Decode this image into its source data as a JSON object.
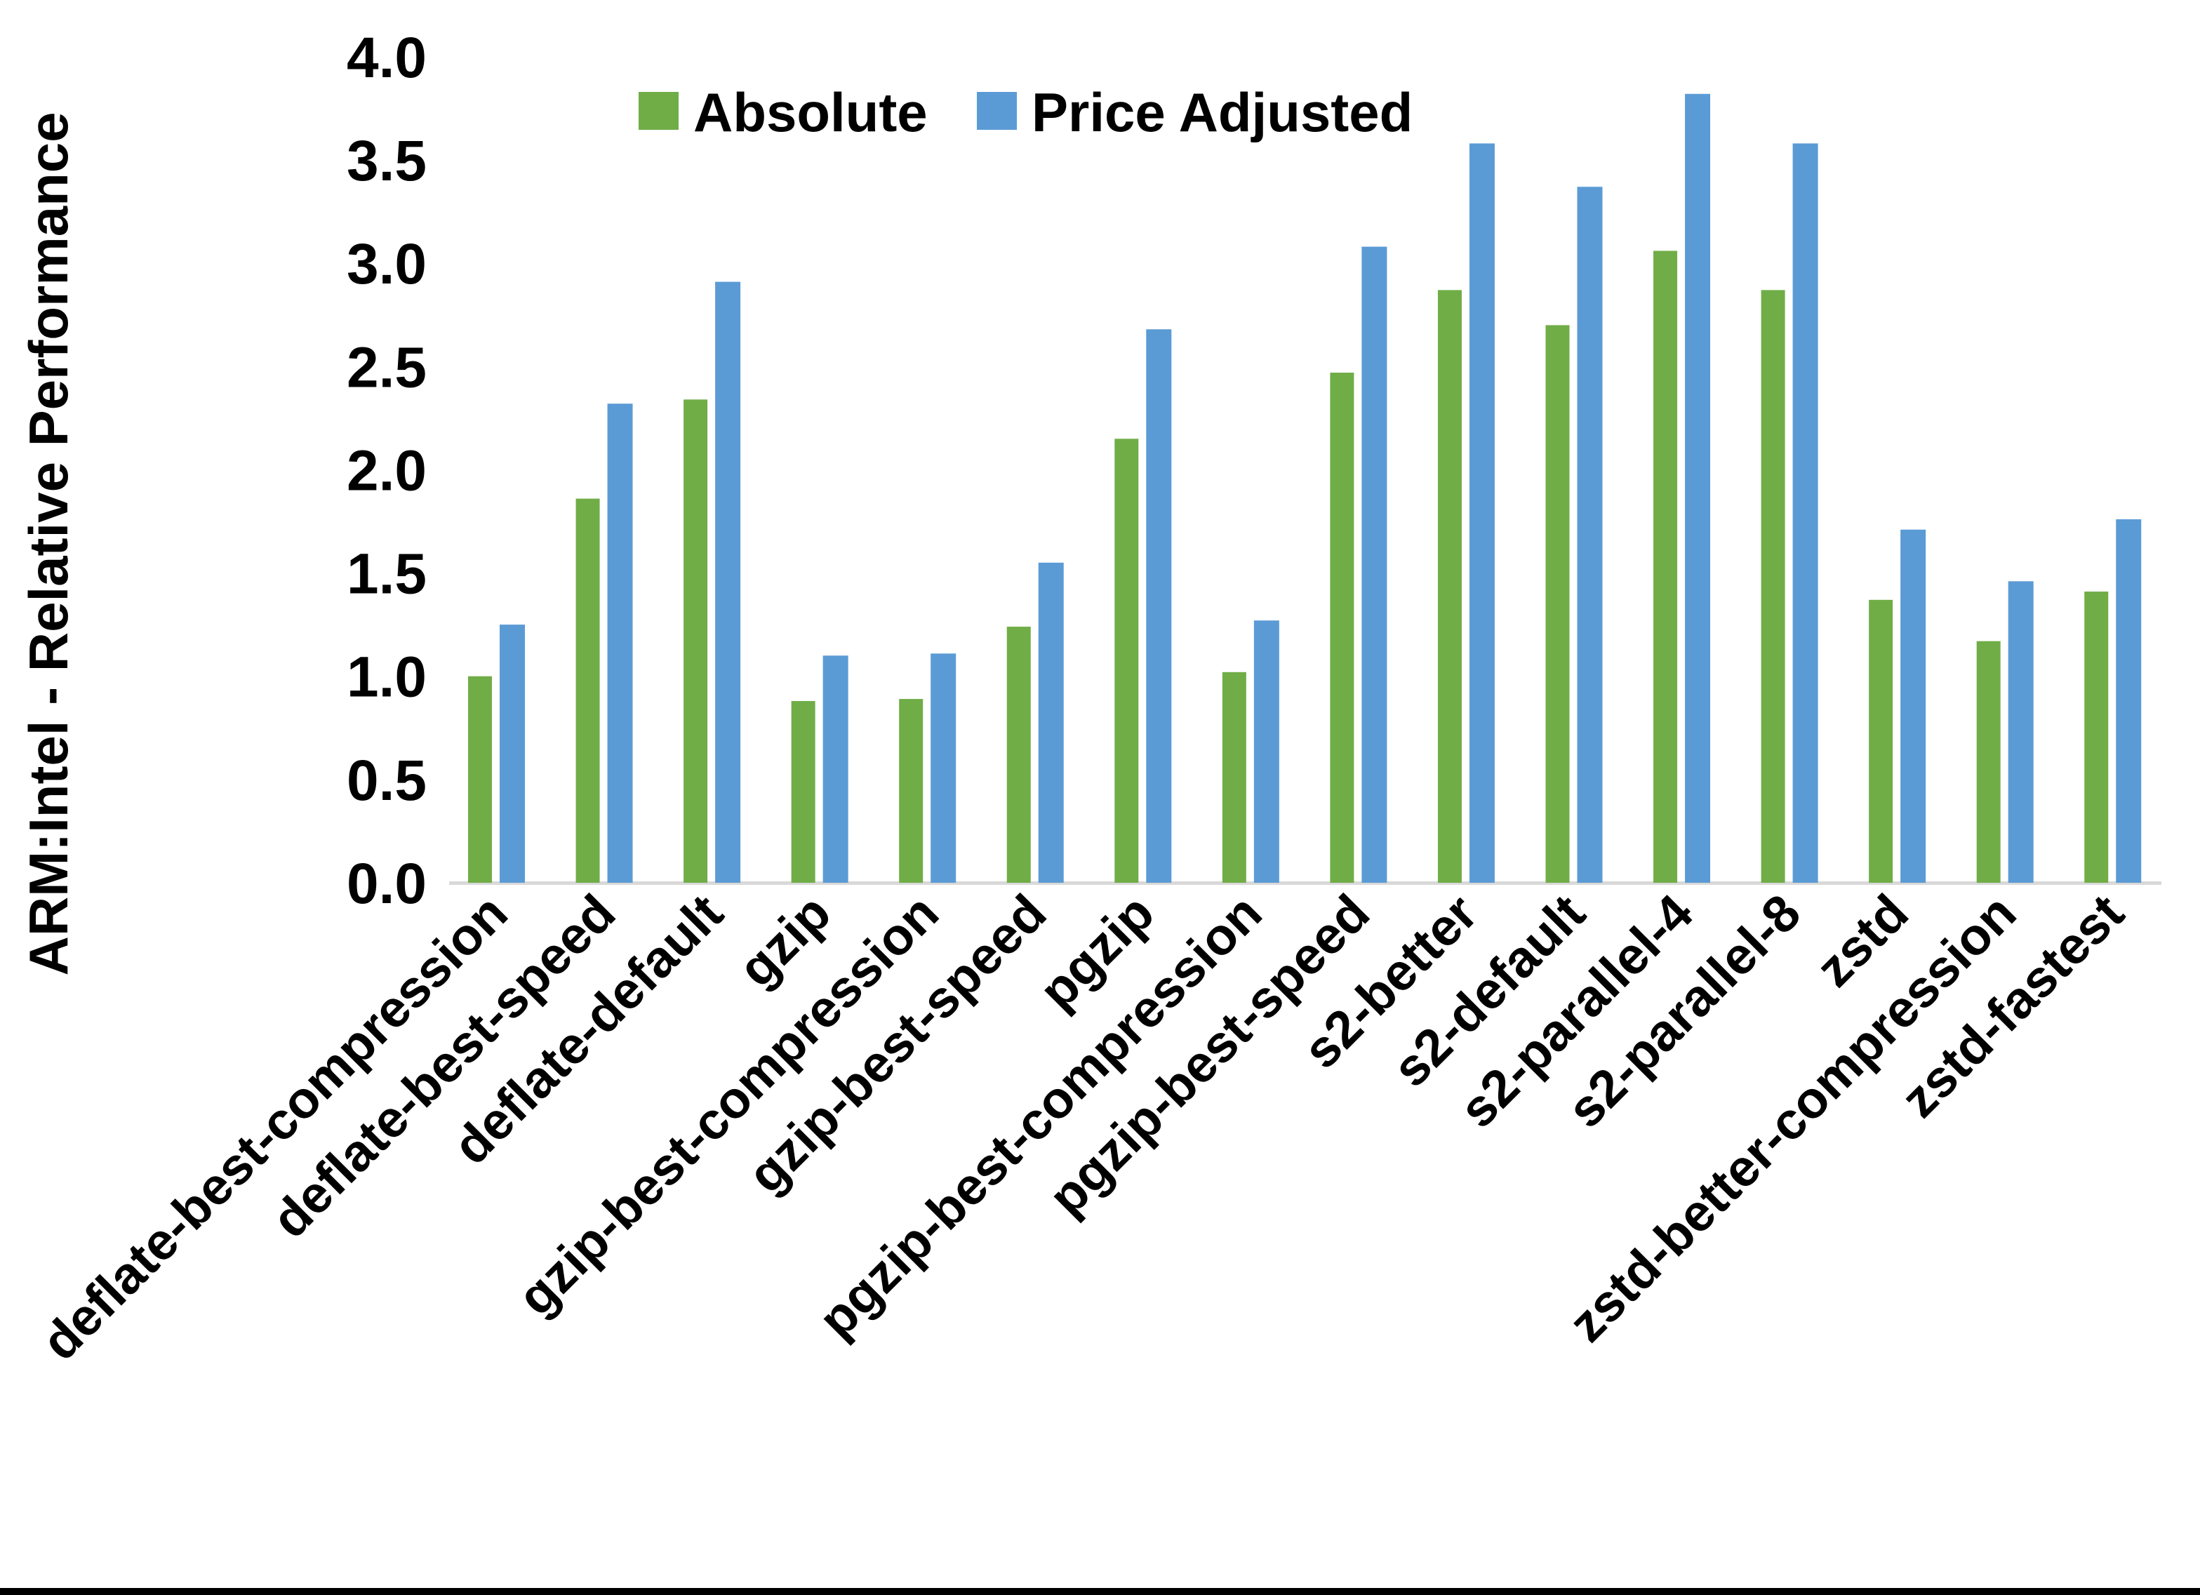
{
  "chart_data": {
    "type": "bar",
    "bar_orientation": "vertical",
    "title": "",
    "xlabel": "",
    "ylabel": "ARM:Intel - Relative Performance",
    "ylim": [
      0.0,
      4.0
    ],
    "ytick_step": 0.5,
    "ytick_labels": [
      "0.0",
      "0.5",
      "1.0",
      "1.5",
      "2.0",
      "2.5",
      "3.0",
      "3.5",
      "4.0"
    ],
    "grid": false,
    "legend_position": "top-center",
    "background_color": "#FFFFFF",
    "axis": {
      "baseline_color": "#D9D9D9",
      "text_color": "#000000"
    },
    "figure_border_bottom_color": "#000000",
    "categories": [
      "deflate-best-compression",
      "deflate-best-speed",
      "deflate-default",
      "gzip",
      "gzip-best-compression",
      "gzip-best-speed",
      "pgzip",
      "pgzip-best-compression",
      "pgzip-best-speed",
      "s2-better",
      "s2-default",
      "s2-parallel-4",
      "s2-parallel-8",
      "zstd",
      "zstd-better-compression",
      "zstd-fastest"
    ],
    "series": [
      {
        "name": "Absolute",
        "color": "#70AD47",
        "values": [
          1.0,
          1.86,
          2.34,
          0.88,
          0.89,
          1.24,
          2.15,
          1.02,
          2.47,
          2.87,
          2.7,
          3.06,
          2.87,
          1.37,
          1.17,
          1.41
        ]
      },
      {
        "name": "Price Adjusted",
        "color": "#5B9BD5",
        "values": [
          1.25,
          2.32,
          2.91,
          1.1,
          1.11,
          1.55,
          2.68,
          1.27,
          3.08,
          3.58,
          3.37,
          3.82,
          3.58,
          1.71,
          1.46,
          1.76
        ]
      }
    ]
  }
}
